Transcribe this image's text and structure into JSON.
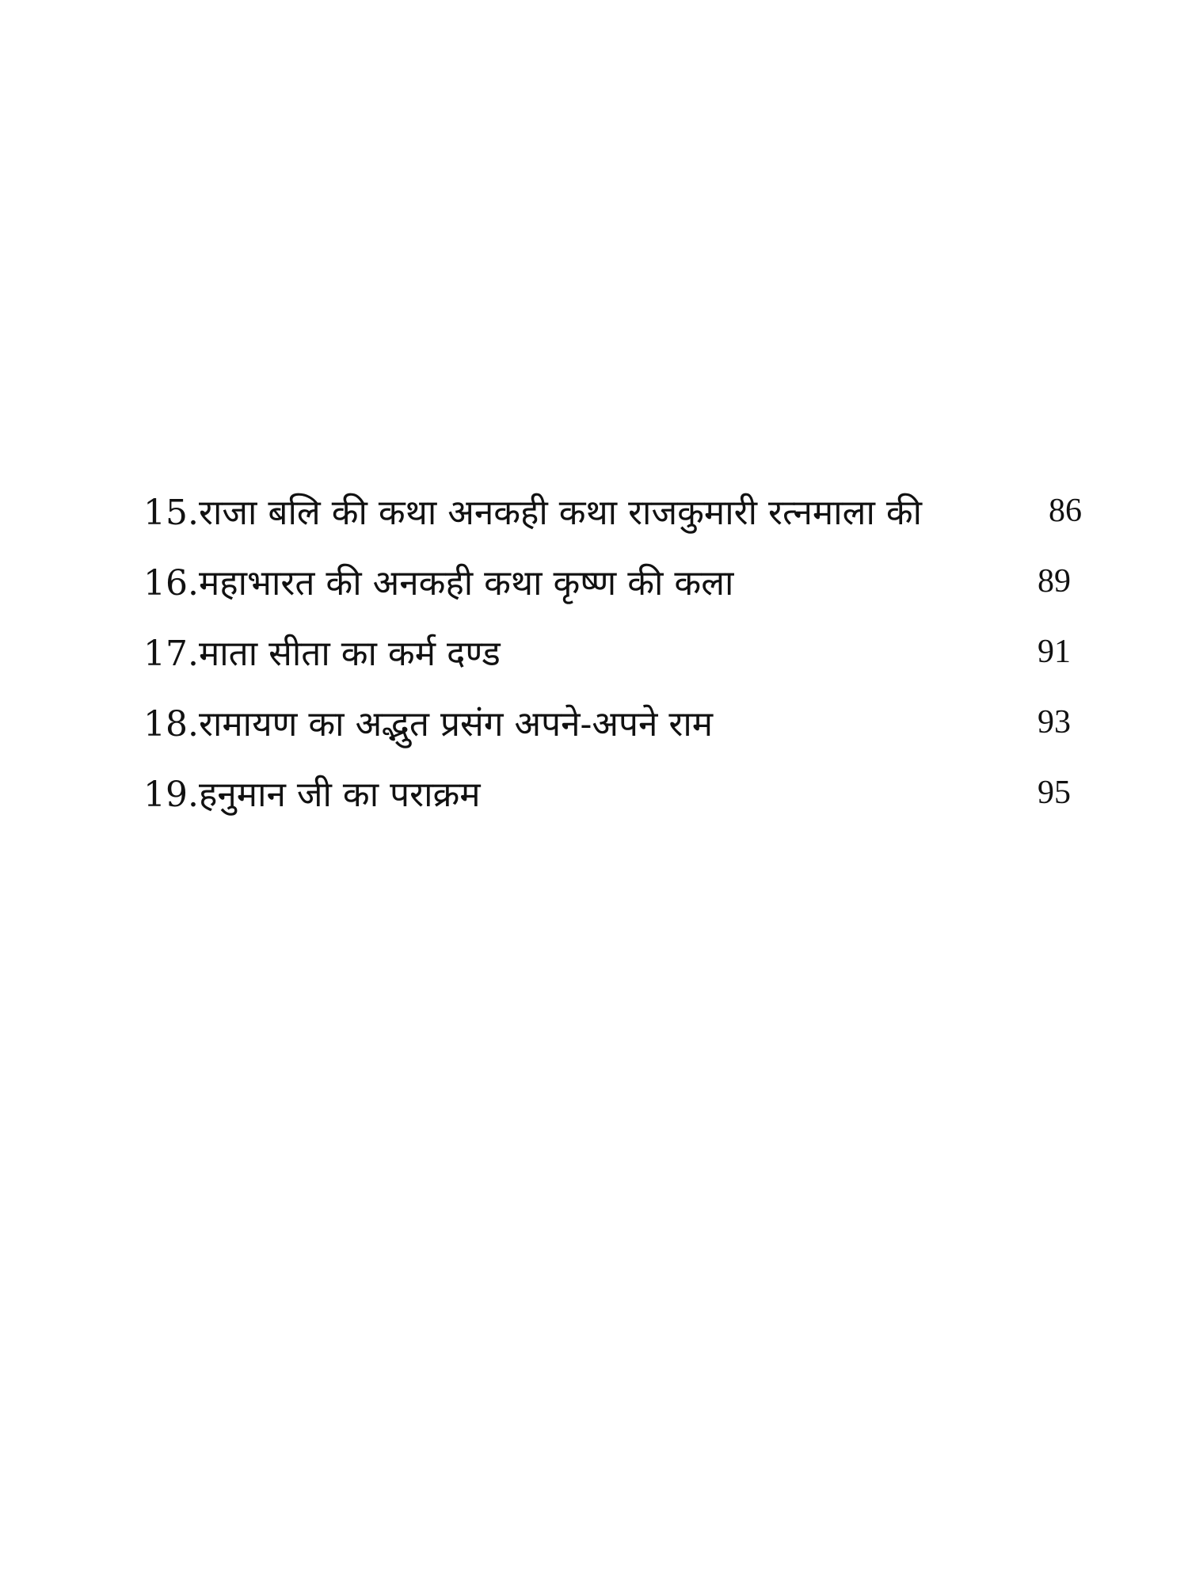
{
  "toc": {
    "entries": [
      {
        "title": "15.राजा बलि की कथा अनकही कथा राजकुमारी रत्नमाला की",
        "page": "86"
      },
      {
        "title": "16.महाभारत की अनकही कथा कृष्ण की कला",
        "page": "89"
      },
      {
        "title": "17.माता सीता का कर्म दण्ड",
        "page": "91"
      },
      {
        "title": "18.रामायण का अद्भुत प्रसंग अपने-अपने राम",
        "page": "93"
      },
      {
        "title": "19.हनुमान जी का पराक्रम",
        "page": "95"
      }
    ]
  }
}
